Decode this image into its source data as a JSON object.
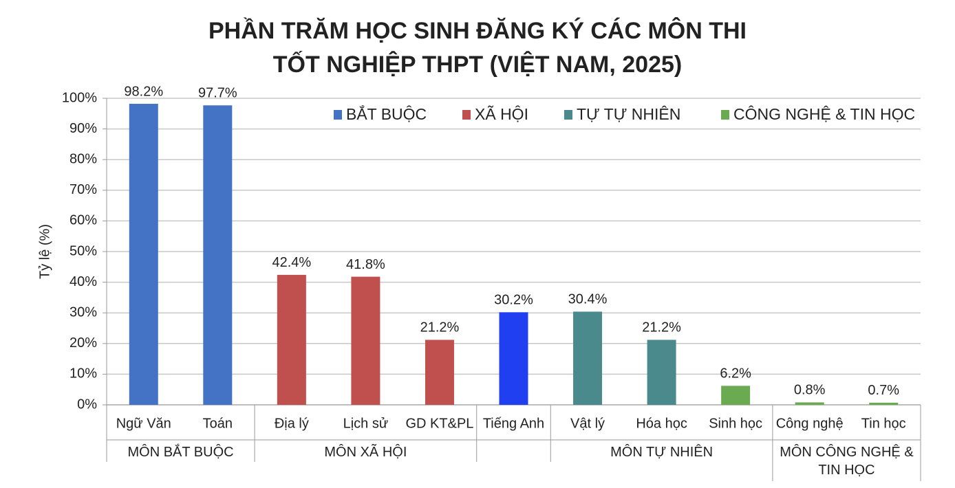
{
  "chart_data": {
    "type": "bar",
    "title": [
      "PHẦN TRĂM HỌC SINH ĐĂNG KÝ CÁC MÔN THI",
      "TỐT NGHIỆP THPT (VIỆT NAM, 2025)"
    ],
    "ylabel": "Tỷ lệ (%)",
    "categories": [
      "Ngữ Văn",
      "Toán",
      "Địa lý",
      "Lịch sử",
      "GD KT&PL",
      "Tiếng Anh",
      "Vật lý",
      "Hóa học",
      "Sinh học",
      "Công nghệ",
      "Tin học"
    ],
    "groups": [
      "MÔN BẮT BUỘC",
      "MÔN BẮT BUỘC",
      "MÔN XÃ HỘI",
      "MÔN XÃ HỘI",
      "MÔN XÃ HỘI",
      null,
      "MÔN TỰ NHIÊN",
      "MÔN TỰ NHIÊN",
      "MÔN TỰ NHIÊN",
      "MÔN CÔNG NGHỆ & TIN HỌC",
      "MÔN CÔNG NGHỆ & TIN HỌC"
    ],
    "values": [
      98.2,
      97.7,
      42.4,
      41.8,
      21.2,
      30.2,
      30.4,
      21.2,
      6.2,
      0.8,
      0.7
    ],
    "value_labels": [
      "98.2%",
      "97.7%",
      "42.4%",
      "41.8%",
      "21.2%",
      "30.2%",
      "30.4%",
      "21.2%",
      "6.2%",
      "0.8%",
      "0.7%"
    ],
    "colors": [
      "#4472c4",
      "#4472c4",
      "#c0504d",
      "#c0504d",
      "#c0504d",
      "#1f3ff0",
      "#4a8a8c",
      "#4a8a8c",
      "#6aab52",
      "#6aab52",
      "#6aab52"
    ],
    "legend": [
      {
        "name": "BẮT BUỘC",
        "color": "#4472c4"
      },
      {
        "name": "XÃ HỘI",
        "color": "#c0504d"
      },
      {
        "name": "TỰ TỰ NHIÊN",
        "color": "#4a8a8c"
      },
      {
        "name": "CÔNG NGHỆ & TIN HỌC",
        "color": "#6aab52"
      }
    ],
    "ylim": [
      0,
      100
    ],
    "yticks": [
      {
        "value": 0,
        "label": "0%"
      },
      {
        "value": 10,
        "label": "10%"
      },
      {
        "value": 20,
        "label": "20%"
      },
      {
        "value": 30,
        "label": "30%"
      },
      {
        "value": 40,
        "label": "40%"
      },
      {
        "value": 50,
        "label": "50%"
      },
      {
        "value": 60,
        "label": "60%"
      },
      {
        "value": 70,
        "label": "70%"
      },
      {
        "value": 80,
        "label": "80%"
      },
      {
        "value": 90,
        "label": "90%"
      },
      {
        "value": 100,
        "label": "100%"
      }
    ],
    "grid": true
  }
}
